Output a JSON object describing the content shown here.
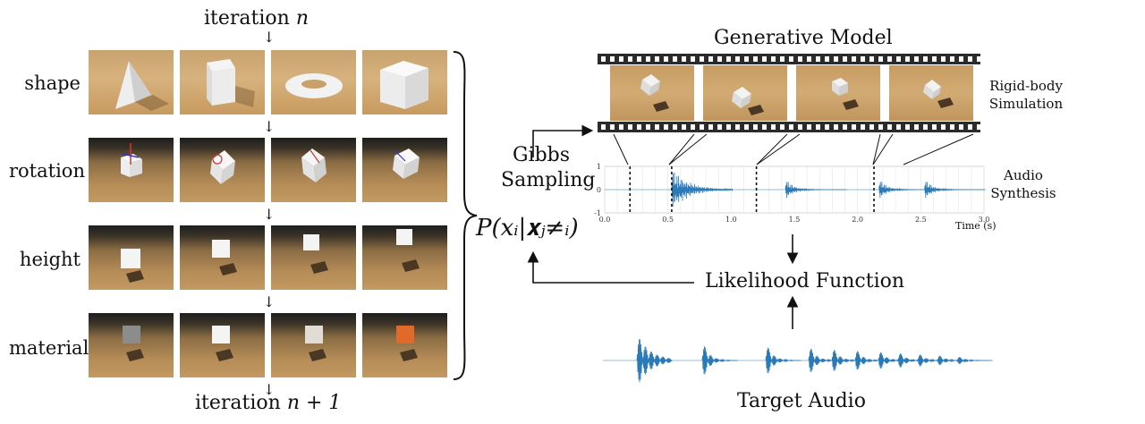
{
  "left_panel": {
    "iteration_top": "iteration",
    "iteration_top_var": "n",
    "iteration_bottom": "iteration",
    "iteration_bottom_var": "n + 1",
    "rows": [
      "shape",
      "rotation",
      "height",
      "material"
    ]
  },
  "middle": {
    "gibbs_line1": "Gibbs",
    "gibbs_line2": "Sampling",
    "formula": "P(xᵢ|𝐱ⱼ≠ᵢ)"
  },
  "right_panel": {
    "generative_title": "Generative Model",
    "rigid_line1": "Rigid-body",
    "rigid_line2": "Simulation",
    "audio_line1": "Audio",
    "audio_line2": "Synthesis",
    "likelihood": "Likelihood Function",
    "target": "Target Audio"
  },
  "chart_data": {
    "type": "line",
    "xlabel": "Time (s)",
    "ylabel": "",
    "xlim": [
      0.0,
      3.0
    ],
    "ylim": [
      -1,
      1
    ],
    "x_ticks": [
      "0.0",
      "0.5",
      "1.0",
      "1.5",
      "2.0",
      "2.5",
      "3.0"
    ],
    "y_ticks": [
      "1",
      "0",
      "-1"
    ],
    "impact_times": [
      0.53,
      1.43,
      2.17,
      2.53
    ],
    "dashed_markers": [
      0.2,
      0.53,
      1.2,
      2.13
    ],
    "grid": true,
    "waveform_color": "#2a7ab8"
  }
}
